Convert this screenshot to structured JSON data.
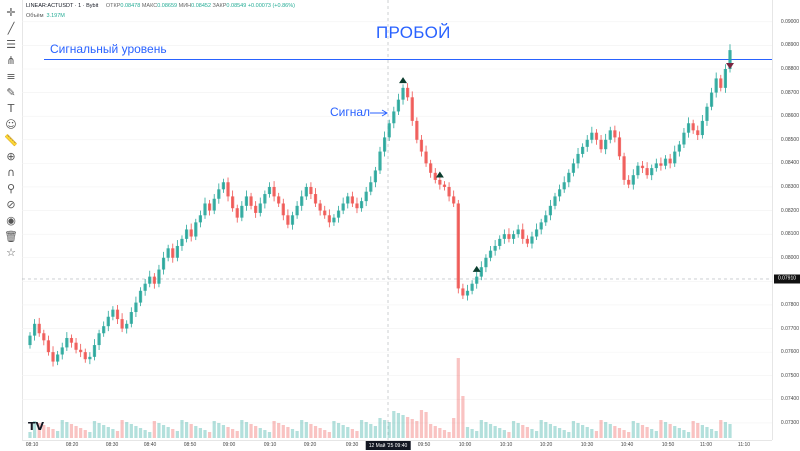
{
  "header": {
    "symbol": "LINEAR:ACTUSDT · 1 · Bybit",
    "open_label": "ОТКР",
    "open_value": "0.08478",
    "high_label": "МАКС",
    "high_value": "0.08659",
    "low_label": "МИН",
    "low_value": "0.08452",
    "close_label": "ЗАКР",
    "close_value": "0.08549",
    "change": "+0.00073 (+0.86%)"
  },
  "volume": {
    "label": "Объём",
    "value": "3.197M"
  },
  "annotations": {
    "title": "ПРОБОЙ",
    "level": "Сигнальный уровень",
    "signal": "Сигнал"
  },
  "price_axis": [
    "0.09000",
    "0.08900",
    "0.08800",
    "0.08700",
    "0.08600",
    "0.08500",
    "0.08400",
    "0.08300",
    "0.08200",
    "0.08100",
    "0.08000",
    "0.07900",
    "0.07800",
    "0.07700",
    "0.07600",
    "0.07500",
    "0.07400",
    "0.07300"
  ],
  "current_price": "0.07910",
  "time_axis": [
    "08:10",
    "08:20",
    "08:30",
    "08:40",
    "08:50",
    "09:00",
    "09:10",
    "09:20",
    "09:30",
    "09:50",
    "10:00",
    "10:10",
    "10:20",
    "10:30",
    "10:40",
    "10:50",
    "11:00",
    "11:10"
  ],
  "time_highlight": "12 Май '25   09:40",
  "toolbar_icons": [
    "crosshair-icon",
    "trend-line-icon",
    "horizontal-lines-icon",
    "pitchfork-icon",
    "fib-icon",
    "brush-icon",
    "text-icon",
    "emoji-icon",
    "ruler-icon",
    "zoom-icon",
    "magnet-icon",
    "lock-drawings-icon",
    "hide-icon",
    "eye-icon",
    "trash-icon",
    "star-icon"
  ],
  "colors": {
    "up": "#26a69a",
    "down": "#ef5350",
    "level": "#2962ff",
    "marker": "#0b3d2e"
  },
  "logo_text": "TV",
  "chart_data": {
    "type": "candlestick",
    "symbol": "ACTUSDT",
    "interval": "1m",
    "signal_level": 0.0884,
    "ylim": [
      0.0727,
      0.0905
    ],
    "close_series": [
      0.0767,
      0.0772,
      0.0768,
      0.0765,
      0.076,
      0.0756,
      0.0759,
      0.0762,
      0.0766,
      0.0764,
      0.0761,
      0.076,
      0.0757,
      0.0758,
      0.0763,
      0.0768,
      0.0771,
      0.0775,
      0.0778,
      0.0774,
      0.077,
      0.0772,
      0.0777,
      0.0781,
      0.0786,
      0.0789,
      0.0792,
      0.0789,
      0.0795,
      0.08,
      0.0804,
      0.08,
      0.0805,
      0.0808,
      0.0812,
      0.0809,
      0.0815,
      0.0818,
      0.0823,
      0.082,
      0.0825,
      0.0829,
      0.0832,
      0.0826,
      0.0821,
      0.0817,
      0.0822,
      0.0826,
      0.0822,
      0.0819,
      0.0823,
      0.0827,
      0.083,
      0.0826,
      0.0823,
      0.0818,
      0.0814,
      0.0818,
      0.0822,
      0.0826,
      0.083,
      0.0827,
      0.0823,
      0.082,
      0.0818,
      0.0815,
      0.0817,
      0.082,
      0.0823,
      0.0826,
      0.0823,
      0.0821,
      0.0824,
      0.0828,
      0.0832,
      0.0837,
      0.0845,
      0.0851,
      0.0857,
      0.0862,
      0.0867,
      0.0872,
      0.0868,
      0.0858,
      0.085,
      0.0845,
      0.084,
      0.0836,
      0.0833,
      0.0831,
      0.083,
      0.0826,
      0.0823,
      0.0787,
      0.0784,
      0.0786,
      0.0789,
      0.0792,
      0.0796,
      0.08,
      0.0803,
      0.0805,
      0.0808,
      0.081,
      0.0808,
      0.081,
      0.0812,
      0.0808,
      0.0806,
      0.0809,
      0.0812,
      0.0815,
      0.0818,
      0.0822,
      0.0826,
      0.0829,
      0.0832,
      0.0836,
      0.084,
      0.0844,
      0.0847,
      0.085,
      0.0853,
      0.085,
      0.0846,
      0.085,
      0.0854,
      0.0851,
      0.0843,
      0.0833,
      0.0831,
      0.0835,
      0.0839,
      0.0838,
      0.0835,
      0.0838,
      0.084,
      0.0839,
      0.0842,
      0.084,
      0.0845,
      0.0848,
      0.0853,
      0.0857,
      0.0854,
      0.0852,
      0.0858,
      0.0864,
      0.087,
      0.0876,
      0.0872,
      0.088,
      0.0888
    ]
  }
}
